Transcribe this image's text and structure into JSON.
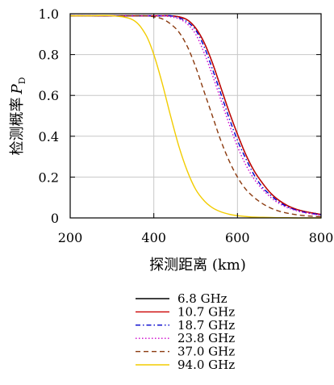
{
  "chart_data": {
    "type": "line",
    "xlabel": "探测距离 (km)",
    "ylabel": "检测概率",
    "ylabel_symbol": "P",
    "ylabel_subscript": "D",
    "xlim": [
      200,
      800
    ],
    "ylim": [
      0,
      1.0
    ],
    "xticks": [
      "200",
      "400",
      "600",
      "800"
    ],
    "yticks": [
      "0",
      "0.2",
      "0.4",
      "0.6",
      "0.8",
      "1.0"
    ],
    "grid": true,
    "legend_position": "below",
    "x": [
      200,
      250,
      300,
      350,
      380,
      400,
      420,
      440,
      460,
      480,
      500,
      520,
      540,
      560,
      580,
      600,
      620,
      640,
      660,
      680,
      700,
      720,
      740,
      760,
      780,
      800
    ],
    "series": [
      {
        "name": "6.8 GHz",
        "color": "#000000",
        "dash": "solid",
        "values": [
          0.99,
          0.99,
          0.99,
          0.99,
          0.99,
          0.99,
          0.99,
          0.99,
          0.985,
          0.97,
          0.93,
          0.86,
          0.76,
          0.64,
          0.52,
          0.41,
          0.31,
          0.23,
          0.17,
          0.12,
          0.085,
          0.06,
          0.043,
          0.032,
          0.024,
          0.017
        ]
      },
      {
        "name": "10.7 GHz",
        "color": "#cc0000",
        "dash": "solid",
        "values": [
          0.99,
          0.99,
          0.99,
          0.99,
          0.99,
          0.99,
          0.99,
          0.99,
          0.985,
          0.97,
          0.93,
          0.86,
          0.76,
          0.64,
          0.52,
          0.41,
          0.31,
          0.23,
          0.17,
          0.12,
          0.085,
          0.06,
          0.043,
          0.032,
          0.024,
          0.017
        ]
      },
      {
        "name": "18.7 GHz",
        "color": "#0000cc",
        "dash": "dashdot",
        "values": [
          0.99,
          0.99,
          0.99,
          0.99,
          0.99,
          0.99,
          0.99,
          0.99,
          0.98,
          0.96,
          0.92,
          0.84,
          0.73,
          0.61,
          0.49,
          0.38,
          0.29,
          0.21,
          0.15,
          0.11,
          0.077,
          0.054,
          0.039,
          0.028,
          0.021,
          0.015
        ]
      },
      {
        "name": "23.8 GHz",
        "color": "#cc00cc",
        "dash": "dotted",
        "values": [
          0.99,
          0.99,
          0.99,
          0.99,
          0.99,
          0.99,
          0.99,
          0.985,
          0.975,
          0.95,
          0.9,
          0.81,
          0.7,
          0.58,
          0.46,
          0.35,
          0.26,
          0.19,
          0.14,
          0.1,
          0.07,
          0.05,
          0.036,
          0.026,
          0.019,
          0.014
        ]
      },
      {
        "name": "37.0 GHz",
        "color": "#8b3a0f",
        "dash": "dashed",
        "values": [
          0.99,
          0.99,
          0.99,
          0.99,
          0.99,
          0.985,
          0.975,
          0.95,
          0.91,
          0.84,
          0.74,
          0.62,
          0.5,
          0.38,
          0.28,
          0.2,
          0.14,
          0.1,
          0.07,
          0.048,
          0.033,
          0.023,
          0.016,
          0.011,
          0.008,
          0.006
        ]
      },
      {
        "name": "94.0 GHz",
        "color": "#f2cc00",
        "dash": "solid",
        "values": [
          0.99,
          0.99,
          0.99,
          0.97,
          0.9,
          0.8,
          0.66,
          0.5,
          0.35,
          0.23,
          0.14,
          0.085,
          0.05,
          0.03,
          0.018,
          0.011,
          0.007,
          0.004,
          0.003,
          0.002,
          0.001,
          0.001,
          0.0,
          0.0,
          0.0,
          0.0
        ]
      }
    ]
  }
}
